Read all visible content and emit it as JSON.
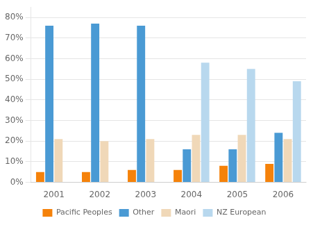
{
  "chart_data": {
    "type": "bar",
    "categories": [
      "2001",
      "2002",
      "2003",
      "2004",
      "2005",
      "2006"
    ],
    "series": [
      {
        "name": "Pacific Peoples",
        "color": "#f5820a",
        "values": [
          5,
          5,
          6,
          6,
          8,
          9
        ]
      },
      {
        "name": "Other",
        "color": "#4a9ad4",
        "values": [
          76,
          77,
          76,
          16,
          16,
          24
        ]
      },
      {
        "name": "Maori",
        "color": "#f0d8b8",
        "values": [
          21,
          20,
          21,
          23,
          23,
          21
        ]
      },
      {
        "name": "NZ European",
        "color": "#b8d8ee",
        "values": [
          0,
          0,
          0,
          58,
          55,
          49
        ]
      }
    ],
    "ylim": [
      0,
      85
    ],
    "yticks": [
      {
        "value": 0,
        "label": "0%"
      },
      {
        "value": 10,
        "label": "10%"
      },
      {
        "value": 20,
        "label": "20%"
      },
      {
        "value": 30,
        "label": "30%"
      },
      {
        "value": 40,
        "label": "40%"
      },
      {
        "value": 50,
        "label": "50%"
      },
      {
        "value": 60,
        "label": "60%"
      },
      {
        "value": 70,
        "label": "70%"
      },
      {
        "value": 80,
        "label": "80%"
      }
    ],
    "grid": true,
    "legend": "bottom"
  }
}
